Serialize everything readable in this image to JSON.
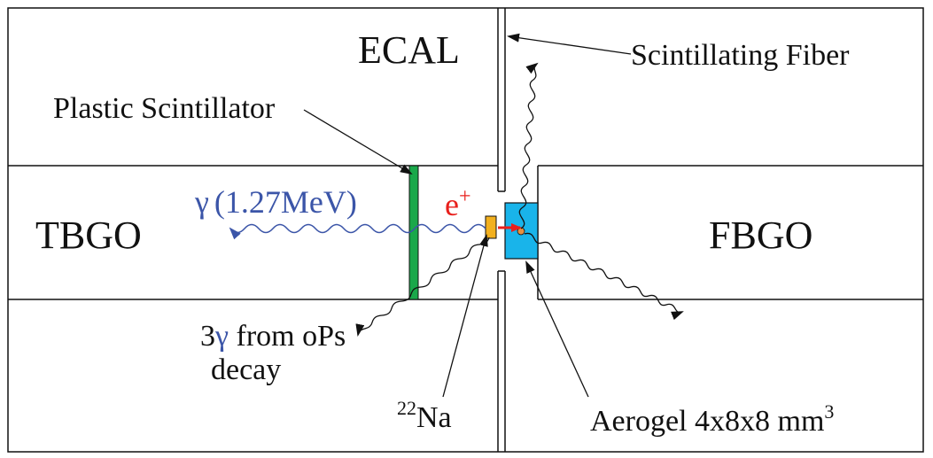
{
  "labels": {
    "ecal": "ECAL",
    "scint_fiber": "Scintillating Fiber",
    "plastic_scint": "Plastic Scintillator",
    "tbgo": "TBGO",
    "fbgo": "FBGO",
    "gamma_symbol": "γ",
    "gamma_energy": "(1.27MeV)",
    "positron": "e",
    "positron_charge": "+",
    "three_gamma_prefix": "3",
    "three_gamma_symbol": "γ",
    "three_gamma_rest": " from oPs",
    "decay": "decay",
    "na_mass": "22",
    "na_symbol": "Na",
    "aerogel": "Aerogel 4x8x8 mm",
    "aerogel_exp": "3"
  },
  "colors": {
    "line": "#111111",
    "plastic_scintillator": "#1aa84a",
    "aerogel": "#19b4ea",
    "na_source": "#f2b01e",
    "gamma": "#3b55a8",
    "positron": "#e8201c"
  }
}
